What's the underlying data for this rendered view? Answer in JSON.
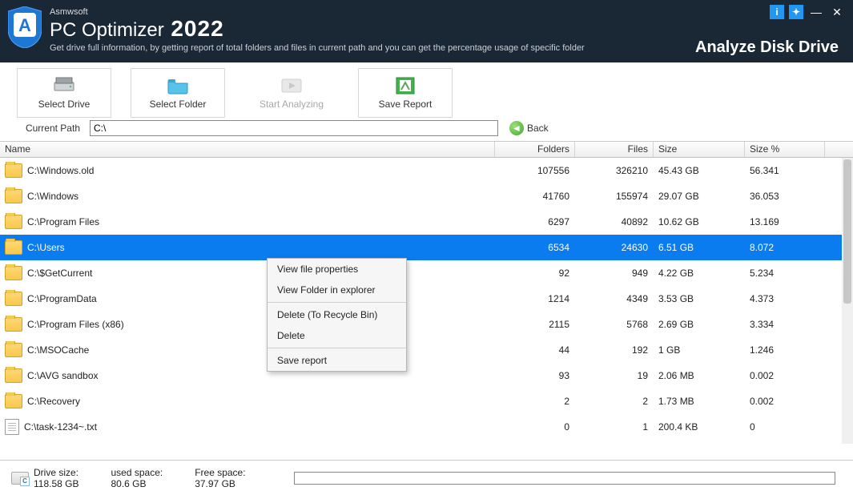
{
  "brand": {
    "vendor": "Asmwsoft",
    "title_part1": "PC Optimizer",
    "title_year": "2022",
    "tagline": "Get drive full information, by getting report of total folders and files in current path and you can get the percentage usage of specific folder"
  },
  "page_label": "Analyze Disk Drive",
  "titlebar_icons": {
    "info": "i",
    "lang": "✦",
    "min": "—",
    "close": "✕"
  },
  "toolbar": {
    "select_drive": "Select Drive",
    "select_folder": "Select Folder",
    "start_analyzing": "Start Analyzing",
    "save_report": "Save Report"
  },
  "path": {
    "label": "Current Path",
    "value": "C:\\",
    "back_label": "Back"
  },
  "columns": {
    "name": "Name",
    "folders": "Folders",
    "files": "Files",
    "size": "Size",
    "pct": "Size %"
  },
  "rows": [
    {
      "icon": "folder",
      "name": "C:\\Windows.old",
      "folders": "107556",
      "files": "326210",
      "size": "45.43 GB",
      "pct": "56.341",
      "selected": false
    },
    {
      "icon": "folder",
      "name": "C:\\Windows",
      "folders": "41760",
      "files": "155974",
      "size": "29.07 GB",
      "pct": "36.053",
      "selected": false
    },
    {
      "icon": "folder",
      "name": "C:\\Program Files",
      "folders": "6297",
      "files": "40892",
      "size": "10.62 GB",
      "pct": "13.169",
      "selected": false
    },
    {
      "icon": "folder",
      "name": "C:\\Users",
      "folders": "6534",
      "files": "24630",
      "size": "6.51 GB",
      "pct": "8.072",
      "selected": true
    },
    {
      "icon": "folder",
      "name": "C:\\$GetCurrent",
      "folders": "92",
      "files": "949",
      "size": "4.22 GB",
      "pct": "5.234",
      "selected": false
    },
    {
      "icon": "folder",
      "name": "C:\\ProgramData",
      "folders": "1214",
      "files": "4349",
      "size": "3.53 GB",
      "pct": "4.373",
      "selected": false
    },
    {
      "icon": "folder",
      "name": "C:\\Program Files (x86)",
      "folders": "2115",
      "files": "5768",
      "size": "2.69 GB",
      "pct": "3.334",
      "selected": false
    },
    {
      "icon": "folder",
      "name": "C:\\MSOCache",
      "folders": "44",
      "files": "192",
      "size": "1 GB",
      "pct": "1.246",
      "selected": false
    },
    {
      "icon": "folder",
      "name": "C:\\AVG sandbox",
      "folders": "93",
      "files": "19",
      "size": "2.06 MB",
      "pct": "0.002",
      "selected": false
    },
    {
      "icon": "folder",
      "name": "C:\\Recovery",
      "folders": "2",
      "files": "2",
      "size": "1.73 MB",
      "pct": "0.002",
      "selected": false
    },
    {
      "icon": "file",
      "name": "C:\\task-1234~.txt",
      "folders": "0",
      "files": "1",
      "size": "200.4 KB",
      "pct": "0",
      "selected": false
    }
  ],
  "context_menu": {
    "view_props": "View file properties",
    "view_explorer": "View Folder in explorer",
    "delete_recycle": "Delete (To Recycle Bin)",
    "delete": "Delete",
    "save_report": "Save report"
  },
  "status": {
    "drive_size_label": "Drive size:",
    "drive_size_value": "118.58 GB",
    "used_label": "used space:",
    "used_value": "80.6 GB",
    "free_label": "Free space:",
    "free_value": "37.97 GB"
  },
  "colors": {
    "titlebar_bg": "#1a2735",
    "selection_bg": "#0a7cf0",
    "accent_btn": "#2196f3",
    "folder_fill": "#f7c84b"
  }
}
